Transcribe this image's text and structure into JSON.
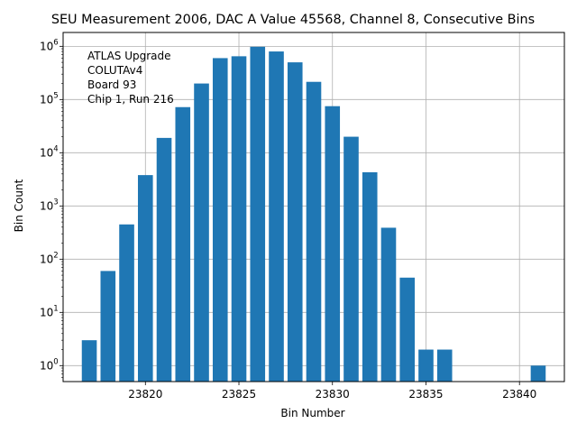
{
  "chart_data": {
    "type": "bar",
    "scale": "log",
    "title": "SEU Measurement 2006, DAC A Value 45568, Channel 8, Consecutive Bins",
    "xlabel": "Bin Number",
    "ylabel": "Bin Count",
    "annotation": [
      "ATLAS Upgrade",
      "COLUTAv4",
      " Board 93",
      "Chip 1, Run 216"
    ],
    "x": [
      23817,
      23818,
      23819,
      23820,
      23821,
      23822,
      23823,
      23824,
      23825,
      23826,
      23827,
      23828,
      23829,
      23830,
      23831,
      23832,
      23833,
      23834,
      23835,
      23836,
      23841
    ],
    "values": [
      3,
      60,
      450,
      3800,
      19000,
      72000,
      200000,
      600000,
      650000,
      980000,
      800000,
      500000,
      215000,
      75000,
      20000,
      4300,
      390,
      45,
      2,
      2,
      1
    ],
    "xlim": [
      23815.6,
      23842.4
    ],
    "ylim_exp": [
      -0.3,
      6.26
    ],
    "xticks": [
      23820,
      23825,
      23830,
      23835,
      23840
    ],
    "yticks": [
      {
        "exp": 0,
        "base": "10",
        "sup": "0"
      },
      {
        "exp": 1,
        "base": "10",
        "sup": "1"
      },
      {
        "exp": 2,
        "base": "10",
        "sup": "2"
      },
      {
        "exp": 3,
        "base": "10",
        "sup": "3"
      },
      {
        "exp": 4,
        "base": "10",
        "sup": "4"
      },
      {
        "exp": 5,
        "base": "10",
        "sup": "5"
      },
      {
        "exp": 6,
        "base": "10",
        "sup": "6"
      }
    ],
    "grid": true,
    "bar_color": "#1f77b4",
    "grid_color": "#b0b0b0"
  }
}
